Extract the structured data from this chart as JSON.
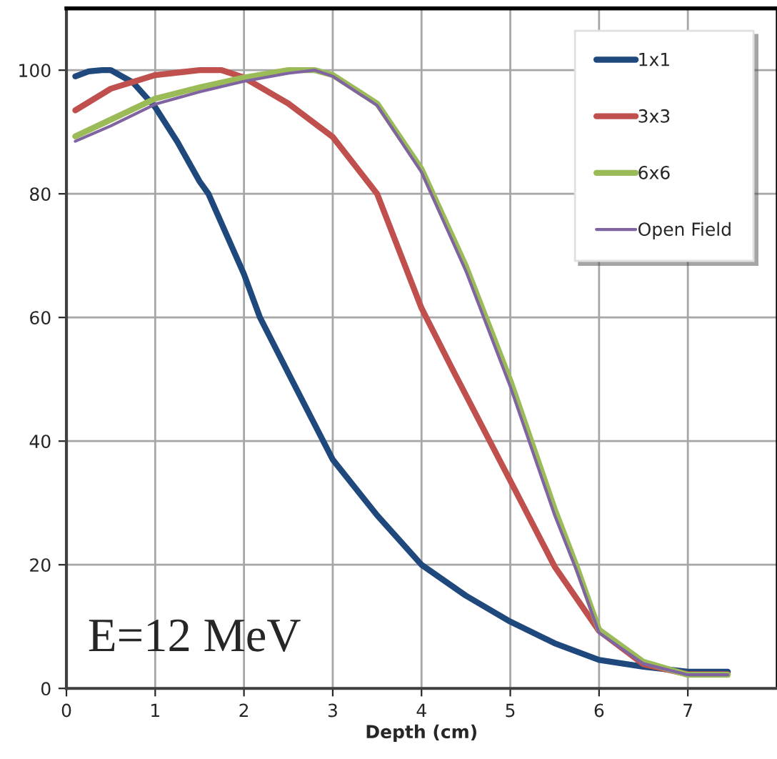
{
  "chart_data": {
    "type": "line",
    "xlabel": "Depth (cm)",
    "xlim": [
      0,
      8
    ],
    "xticks": [
      0,
      1,
      2,
      3,
      4,
      5,
      6,
      7
    ],
    "ylim": [
      0,
      110
    ],
    "yticks": [
      0,
      20,
      40,
      60,
      80,
      100
    ],
    "grid": true,
    "legend": "top right",
    "marker": "none",
    "line_style": "solid",
    "annotations": [
      "E=12 MeV"
    ],
    "series": [
      {
        "name": "1x1",
        "color": "#1f497d",
        "x": [
          0.1,
          0.25,
          0.4,
          0.5,
          0.75,
          1,
          1.25,
          1.5,
          1.6,
          2,
          2.18,
          2.5,
          3,
          3.5,
          4,
          4.5,
          5,
          5.5,
          6,
          6.5,
          7,
          7.45
        ],
        "values": [
          99,
          99.8,
          100,
          100,
          98,
          94,
          88.4,
          82,
          80,
          67,
          60,
          51,
          37,
          28,
          20,
          15,
          10.8,
          7.3,
          4.6,
          3.5,
          2.7,
          2.7
        ]
      },
      {
        "name": "3x3",
        "color": "#c0504d",
        "x": [
          0.1,
          0.5,
          1,
          1.5,
          1.75,
          2,
          2.5,
          3,
          3.5,
          4,
          4.36,
          5,
          5.5,
          6,
          6.5,
          7,
          7.45
        ],
        "values": [
          93.5,
          97,
          99.2,
          100,
          100,
          98.8,
          94.6,
          89.2,
          80,
          61.5,
          51.3,
          33.6,
          19.7,
          9.3,
          3.9,
          2.3,
          2.3
        ]
      },
      {
        "name": "6x6",
        "color": "#9bbb59",
        "x": [
          0.1,
          0.5,
          1,
          1.5,
          2,
          2.5,
          2.8,
          3,
          3.5,
          4,
          4.5,
          5,
          5.5,
          5.74,
          6,
          6.5,
          7,
          7.45
        ],
        "values": [
          89.3,
          92,
          95.4,
          97.2,
          98.8,
          100,
          100,
          99.2,
          94.6,
          84,
          68.3,
          49.8,
          29,
          20,
          9.5,
          4.3,
          2.2,
          2.2
        ]
      },
      {
        "name": "Open Field",
        "color": "#8064a2",
        "x": [
          0.1,
          0.5,
          1,
          1.5,
          2,
          2.5,
          2.8,
          3,
          3.5,
          4,
          4.5,
          5,
          5.5,
          5.74,
          6,
          6.5,
          7,
          7.45
        ],
        "values": [
          88.5,
          91,
          94.5,
          96.5,
          98.2,
          99.5,
          100,
          99,
          94.3,
          83.5,
          67.5,
          48.8,
          28,
          19.3,
          9,
          4,
          2.2,
          2.2
        ]
      }
    ]
  }
}
